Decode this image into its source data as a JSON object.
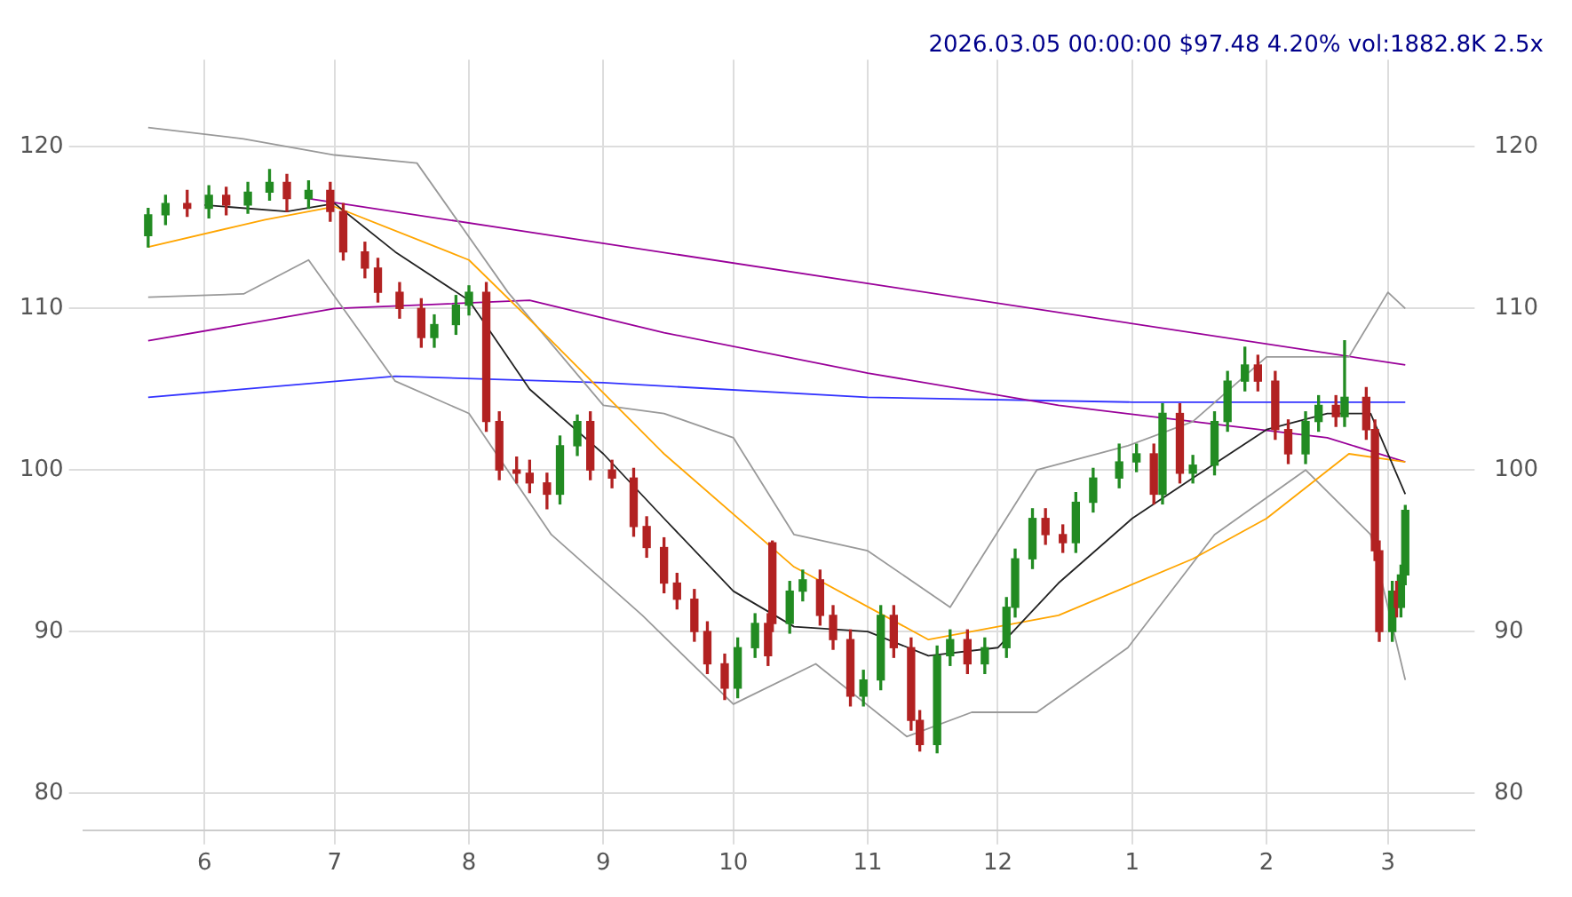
{
  "chart_data": {
    "type": "candlestick",
    "title": "2026.03.05 00:00:00 $97.48 4.20% vol:1882.8K 2.5x",
    "grid": true,
    "legend": false,
    "xlim": [
      "2025-05-04",
      "2026-03-21"
    ],
    "xticks": [
      {
        "value": "2025-06-01",
        "label": "6"
      },
      {
        "value": "2025-07-01",
        "label": "7"
      },
      {
        "value": "2025-08-01",
        "label": "8"
      },
      {
        "value": "2025-09-01",
        "label": "9"
      },
      {
        "value": "2025-10-01",
        "label": "10"
      },
      {
        "value": "2025-11-01",
        "label": "11"
      },
      {
        "value": "2025-12-01",
        "label": "12"
      },
      {
        "value": "2026-01-01",
        "label": "1"
      },
      {
        "value": "2026-02-01",
        "label": "2"
      },
      {
        "value": "2026-03-01",
        "label": "3"
      }
    ],
    "ylim": [
      77.7,
      125.4
    ],
    "yticks": [
      80,
      90,
      100,
      110,
      120
    ],
    "y2lim": [
      77.7,
      125.4
    ],
    "y2ticks": [
      80,
      90,
      100,
      110,
      120
    ],
    "x": [
      "2025-05-19",
      "2025-05-23",
      "2025-05-28",
      "2025-06-02",
      "2025-06-06",
      "2025-06-11",
      "2025-06-16",
      "2025-06-20",
      "2025-06-25",
      "2025-06-30",
      "2025-07-03",
      "2025-07-08",
      "2025-07-11",
      "2025-07-16",
      "2025-07-21",
      "2025-07-24",
      "2025-07-29",
      "2025-08-01",
      "2025-08-05",
      "2025-08-08",
      "2025-08-12",
      "2025-08-15",
      "2025-08-19",
      "2025-08-22",
      "2025-08-26",
      "2025-08-29",
      "2025-09-03",
      "2025-09-08",
      "2025-09-11",
      "2025-09-15",
      "2025-09-18",
      "2025-09-22",
      "2025-09-25",
      "2025-09-29",
      "2025-10-02",
      "2025-10-06",
      "2025-10-09",
      "2025-10-10",
      "2025-10-14",
      "2025-10-17",
      "2025-10-21",
      "2025-10-24",
      "2025-10-28",
      "2025-10-31",
      "2025-11-04",
      "2025-11-07",
      "2025-11-11",
      "2025-11-13",
      "2025-11-17",
      "2025-11-20",
      "2025-11-24",
      "2025-11-28",
      "2025-12-03",
      "2025-12-05",
      "2025-12-09",
      "2025-12-12",
      "2025-12-16",
      "2025-12-19",
      "2025-12-23",
      "2025-12-29",
      "2026-01-02",
      "2026-01-06",
      "2026-01-08",
      "2026-01-12",
      "2026-01-15",
      "2026-01-20",
      "2026-01-23",
      "2026-01-27",
      "2026-01-30",
      "2026-02-03",
      "2026-02-06",
      "2026-02-10",
      "2026-02-13",
      "2026-02-17",
      "2026-02-19",
      "2026-02-24",
      "2026-02-26",
      "2026-02-27",
      "2026-03-02",
      "2026-03-03",
      "2026-03-04",
      "2026-03-05"
    ],
    "ohlc": [
      [
        114.5,
        116.2,
        113.8,
        115.8
      ],
      [
        115.8,
        117.0,
        115.2,
        116.5
      ],
      [
        116.5,
        117.3,
        115.7,
        116.2
      ],
      [
        116.2,
        117.6,
        115.6,
        117.0
      ],
      [
        117.0,
        117.5,
        115.8,
        116.4
      ],
      [
        116.4,
        117.8,
        115.9,
        117.2
      ],
      [
        117.2,
        118.6,
        116.7,
        117.8
      ],
      [
        117.8,
        118.3,
        116.0,
        116.8
      ],
      [
        116.8,
        117.9,
        116.2,
        117.3
      ],
      [
        117.3,
        117.8,
        115.4,
        116.0
      ],
      [
        116.0,
        116.5,
        113.0,
        113.5
      ],
      [
        113.5,
        114.1,
        111.9,
        112.5
      ],
      [
        112.5,
        113.1,
        110.4,
        111.0
      ],
      [
        111.0,
        111.6,
        109.4,
        110.0
      ],
      [
        110.0,
        110.6,
        107.6,
        108.2
      ],
      [
        108.2,
        109.6,
        107.6,
        109.0
      ],
      [
        109.0,
        110.8,
        108.4,
        110.2
      ],
      [
        110.2,
        111.4,
        109.6,
        111.0
      ],
      [
        111.0,
        111.6,
        102.4,
        103.0
      ],
      [
        103.0,
        103.6,
        99.4,
        100.0
      ],
      [
        100.0,
        100.8,
        99.2,
        99.8
      ],
      [
        99.8,
        100.6,
        98.6,
        99.2
      ],
      [
        99.2,
        99.8,
        97.6,
        98.5
      ],
      [
        98.5,
        102.1,
        97.9,
        101.5
      ],
      [
        101.5,
        103.4,
        100.9,
        103.0
      ],
      [
        103.0,
        103.6,
        99.4,
        100.0
      ],
      [
        100.0,
        100.6,
        98.9,
        99.5
      ],
      [
        99.5,
        100.1,
        95.9,
        96.5
      ],
      [
        96.5,
        97.1,
        94.6,
        95.2
      ],
      [
        95.2,
        95.8,
        92.4,
        93.0
      ],
      [
        93.0,
        93.6,
        91.4,
        92.0
      ],
      [
        92.0,
        92.6,
        89.4,
        90.0
      ],
      [
        90.0,
        90.6,
        87.4,
        88.0
      ],
      [
        88.0,
        88.6,
        85.8,
        86.5
      ],
      [
        86.5,
        89.6,
        85.9,
        89.0
      ],
      [
        89.0,
        91.1,
        88.4,
        90.5
      ],
      [
        90.5,
        91.1,
        87.9,
        88.5
      ],
      [
        95.5,
        95.6,
        90.0,
        90.5
      ],
      [
        90.5,
        93.1,
        89.9,
        92.5
      ],
      [
        92.5,
        93.8,
        91.9,
        93.2
      ],
      [
        93.2,
        93.8,
        90.4,
        91.0
      ],
      [
        91.0,
        91.6,
        88.9,
        89.5
      ],
      [
        89.5,
        90.1,
        85.4,
        86.0
      ],
      [
        86.0,
        87.6,
        85.4,
        87.0
      ],
      [
        87.0,
        91.6,
        86.4,
        91.0
      ],
      [
        91.0,
        91.6,
        88.4,
        89.0
      ],
      [
        89.0,
        89.6,
        83.9,
        84.5
      ],
      [
        84.5,
        85.1,
        82.6,
        83.0
      ],
      [
        83.0,
        89.1,
        82.5,
        88.5
      ],
      [
        88.5,
        90.1,
        87.9,
        89.5
      ],
      [
        89.5,
        90.1,
        87.4,
        88.0
      ],
      [
        88.0,
        89.6,
        87.4,
        89.0
      ],
      [
        89.0,
        92.1,
        88.4,
        91.5
      ],
      [
        91.5,
        95.1,
        90.9,
        94.5
      ],
      [
        94.5,
        97.6,
        93.9,
        97.0
      ],
      [
        97.0,
        97.6,
        95.4,
        96.0
      ],
      [
        96.0,
        96.6,
        94.9,
        95.5
      ],
      [
        95.5,
        98.6,
        94.9,
        98.0
      ],
      [
        98.0,
        100.1,
        97.4,
        99.5
      ],
      [
        99.5,
        101.6,
        98.9,
        100.5
      ],
      [
        100.5,
        101.6,
        99.9,
        101.0
      ],
      [
        101.0,
        101.6,
        97.9,
        98.5
      ],
      [
        98.5,
        104.1,
        97.9,
        103.5
      ],
      [
        103.5,
        104.1,
        99.2,
        99.8
      ],
      [
        99.8,
        100.9,
        99.2,
        100.3
      ],
      [
        100.3,
        103.6,
        99.7,
        103.0
      ],
      [
        103.0,
        106.1,
        102.4,
        105.5
      ],
      [
        105.5,
        107.6,
        104.9,
        106.5
      ],
      [
        106.5,
        107.1,
        104.9,
        105.5
      ],
      [
        105.5,
        106.1,
        101.9,
        102.5
      ],
      [
        102.5,
        103.1,
        100.4,
        101.0
      ],
      [
        101.0,
        103.6,
        100.4,
        103.0
      ],
      [
        103.0,
        104.6,
        102.4,
        104.0
      ],
      [
        104.0,
        104.6,
        102.7,
        103.3
      ],
      [
        103.3,
        108.0,
        102.7,
        104.5
      ],
      [
        104.5,
        105.1,
        101.9,
        102.5
      ],
      [
        102.5,
        103.1,
        94.4,
        95.0
      ],
      [
        95.0,
        95.6,
        89.4,
        90.0
      ],
      [
        90.0,
        93.1,
        89.4,
        92.5
      ],
      [
        92.5,
        93.1,
        90.9,
        91.5
      ],
      [
        91.5,
        94.1,
        90.9,
        93.5
      ],
      [
        93.5,
        97.8,
        92.9,
        97.5
      ]
    ],
    "series": [
      {
        "type": "line",
        "color": "#222222",
        "x": [
          "2025-06-01",
          "2025-06-20",
          "2025-07-01",
          "2025-07-15",
          "2025-08-01",
          "2025-08-15",
          "2025-09-01",
          "2025-09-15",
          "2025-10-01",
          "2025-10-15",
          "2025-11-01",
          "2025-11-15",
          "2025-12-01",
          "2025-12-15",
          "2026-01-01",
          "2026-01-15",
          "2026-02-01",
          "2026-02-15",
          "2026-02-25",
          "2026-03-05"
        ],
        "values": [
          116.4,
          116.0,
          116.5,
          113.5,
          110.5,
          105,
          101,
          97,
          92.5,
          90.3,
          90,
          88.5,
          89,
          93,
          97,
          99.5,
          102.5,
          103.5,
          103.5,
          98.5
        ]
      },
      {
        "type": "line",
        "color": "#ffa500",
        "x": [
          "2025-05-19",
          "2025-06-15",
          "2025-07-01",
          "2025-08-01",
          "2025-08-20",
          "2025-09-15",
          "2025-10-15",
          "2025-11-15",
          "2025-12-15",
          "2026-01-15",
          "2026-02-01",
          "2026-02-20",
          "2026-03-05"
        ],
        "values": [
          113.8,
          115.5,
          116.3,
          113,
          108,
          101,
          94,
          89.5,
          91,
          94.5,
          97,
          101,
          100.5
        ]
      },
      {
        "type": "line",
        "color": "#999999",
        "x": [
          "2025-05-19",
          "2025-06-10",
          "2025-07-01",
          "2025-07-20",
          "2025-08-10",
          "2025-09-01",
          "2025-09-15",
          "2025-10-01",
          "2025-10-15",
          "2025-11-01",
          "2025-11-20",
          "2025-12-10",
          "2025-12-31",
          "2026-01-15",
          "2026-02-01",
          "2026-02-20",
          "2026-03-01",
          "2026-03-05"
        ],
        "values": [
          121.2,
          120.5,
          119.5,
          119,
          111,
          104,
          103.5,
          102,
          96,
          95,
          91.5,
          100,
          101.5,
          103,
          107,
          107,
          111,
          110
        ]
      },
      {
        "type": "line",
        "color": "#999999",
        "x": [
          "2025-05-19",
          "2025-06-10",
          "2025-06-25",
          "2025-07-15",
          "2025-08-01",
          "2025-08-20",
          "2025-09-10",
          "2025-10-01",
          "2025-10-20",
          "2025-11-10",
          "2025-11-25",
          "2025-12-10",
          "2025-12-31",
          "2026-01-20",
          "2026-02-10",
          "2026-02-25",
          "2026-03-05"
        ],
        "values": [
          110.7,
          110.9,
          113,
          105.5,
          103.5,
          96,
          91,
          85.5,
          88,
          83.5,
          85,
          85,
          89,
          96,
          100,
          96,
          87
        ]
      },
      {
        "type": "line",
        "color": "#990099",
        "x": [
          "2025-05-19",
          "2025-07-01",
          "2025-08-15",
          "2025-09-15",
          "2025-11-01",
          "2025-12-15",
          "2026-01-15",
          "2026-02-15",
          "2026-03-05"
        ],
        "values": [
          108,
          110,
          110.5,
          108.5,
          106,
          104,
          103,
          102,
          100.5
        ]
      },
      {
        "type": "line",
        "color": "#990099",
        "x": [
          "2025-06-25",
          "2026-03-05"
        ],
        "values": [
          116.8,
          106.5
        ]
      },
      {
        "type": "line",
        "color": "#3333ff",
        "x": [
          "2025-05-19",
          "2025-07-15",
          "2025-09-01",
          "2025-11-01",
          "2026-01-01",
          "2026-03-05"
        ],
        "values": [
          104.5,
          105.8,
          105.4,
          104.5,
          104.2,
          104.2
        ]
      }
    ]
  }
}
